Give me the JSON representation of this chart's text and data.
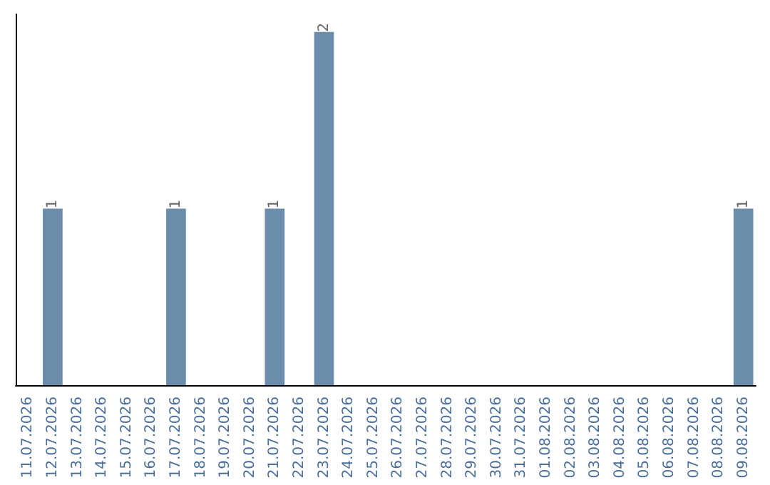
{
  "chart_data": {
    "type": "bar",
    "categories": [
      "11.07.2026",
      "12.07.2026",
      "13.07.2026",
      "14.07.2026",
      "15.07.2026",
      "16.07.2026",
      "17.07.2026",
      "18.07.2026",
      "19.07.2026",
      "20.07.2026",
      "21.07.2026",
      "22.07.2026",
      "23.07.2026",
      "24.07.2026",
      "25.07.2026",
      "26.07.2026",
      "27.07.2026",
      "28.07.2026",
      "29.07.2026",
      "30.07.2026",
      "31.07.2026",
      "01.08.2026",
      "02.08.2026",
      "03.08.2026",
      "04.08.2026",
      "05.08.2026",
      "06.08.2026",
      "07.08.2026",
      "08.08.2026",
      "09.08.2026"
    ],
    "values": [
      0,
      1,
      0,
      0,
      0,
      0,
      1,
      0,
      0,
      0,
      1,
      0,
      2,
      0,
      0,
      0,
      0,
      0,
      0,
      0,
      0,
      0,
      0,
      0,
      0,
      0,
      0,
      0,
      0,
      1
    ],
    "value_labels": [
      null,
      "1",
      null,
      null,
      null,
      null,
      "1",
      null,
      null,
      null,
      "1",
      null,
      "2",
      null,
      null,
      null,
      null,
      null,
      null,
      null,
      null,
      null,
      null,
      null,
      null,
      null,
      null,
      null,
      null,
      "1"
    ],
    "color": "#6b8caa",
    "ylim": [
      0,
      2.1
    ],
    "grid": false,
    "tick_labels": "x"
  }
}
